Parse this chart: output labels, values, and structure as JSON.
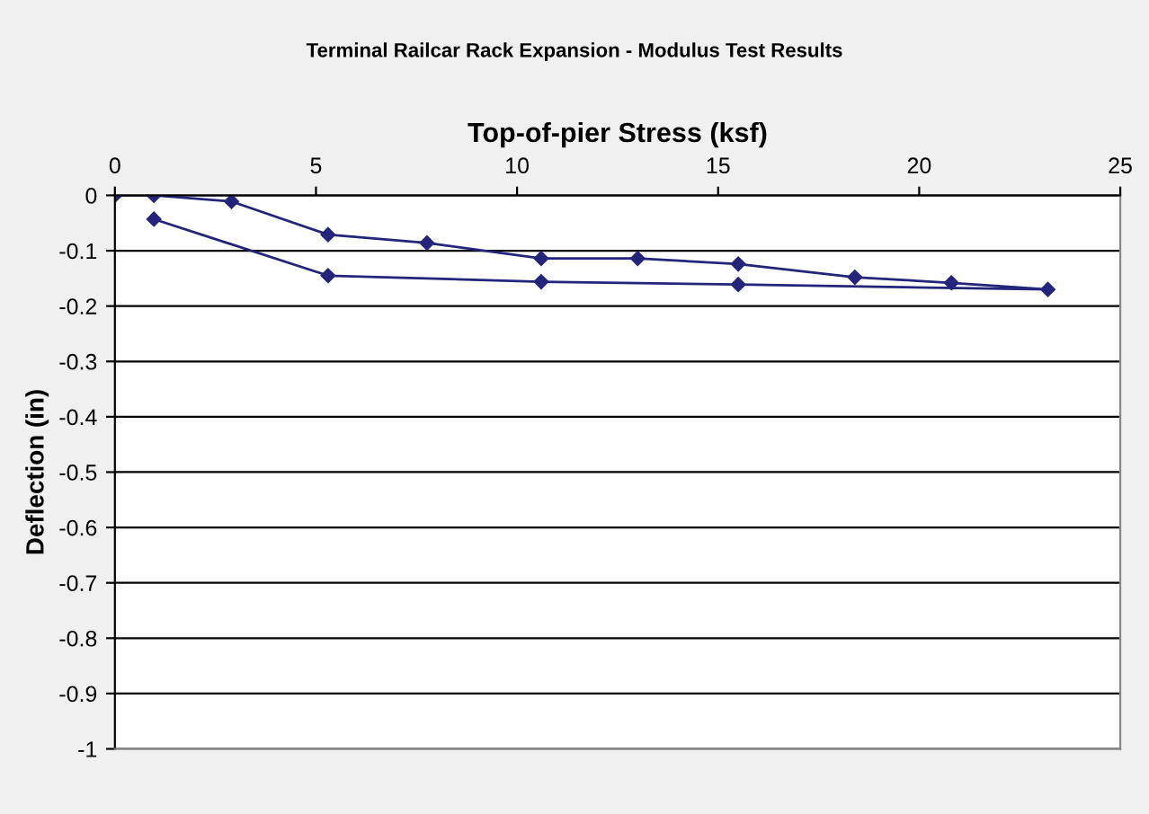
{
  "chart_data": {
    "type": "line",
    "title": "Terminal Railcar Rack Expansion - Modulus Test Results",
    "xlabel": "Top-of-pier Stress (ksf)",
    "ylabel": "Deflection (in)",
    "series": [
      {
        "color": "#24247a",
        "x": [
          0,
          0.97,
          2.9,
          5.3,
          7.76,
          10.6,
          13.0,
          15.5,
          18.4,
          20.8,
          23.2,
          15.5,
          10.6,
          5.3,
          0.97
        ],
        "values": [
          0,
          0,
          -0.011,
          -0.071,
          -0.086,
          -0.114,
          -0.114,
          -0.124,
          -0.148,
          -0.158,
          -0.17,
          -0.161,
          -0.156,
          -0.145,
          -0.043
        ]
      }
    ],
    "xlim": [
      0,
      25
    ],
    "xticks": [
      0,
      5,
      10,
      15,
      20,
      25
    ],
    "ylim": [
      -1,
      0
    ],
    "yticks": [
      0,
      -0.1,
      -0.2,
      -0.3,
      -0.4,
      -0.5,
      -0.6,
      -0.7,
      -0.8,
      -0.9,
      -1
    ],
    "grid": "y",
    "marker": "diamond",
    "line_style": "solid"
  }
}
